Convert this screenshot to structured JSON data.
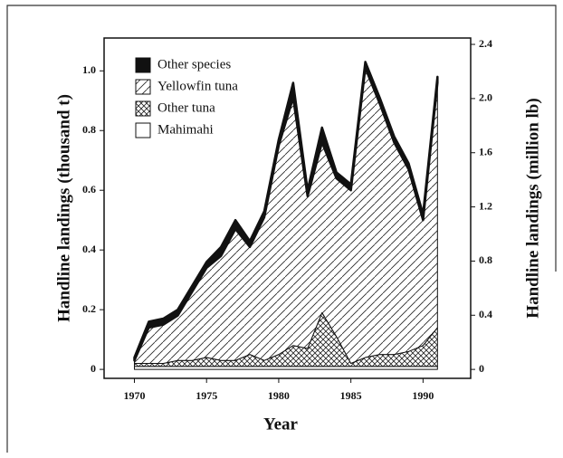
{
  "chart_data": {
    "type": "stacked_area",
    "x": [
      1970,
      1971,
      1972,
      1973,
      1974,
      1975,
      1976,
      1977,
      1978,
      1979,
      1980,
      1981,
      1982,
      1983,
      1984,
      1985,
      1986,
      1987,
      1988,
      1989,
      1990,
      1991
    ],
    "series": [
      {
        "name": "Mahimahi",
        "color": "#ffffff",
        "pattern": "none",
        "values": [
          0.01,
          0.01,
          0.01,
          0.01,
          0.01,
          0.01,
          0.01,
          0.01,
          0.01,
          0.01,
          0.01,
          0.01,
          0.01,
          0.01,
          0.01,
          0.01,
          0.01,
          0.01,
          0.01,
          0.01,
          0.01,
          0.01
        ]
      },
      {
        "name": "Other tuna",
        "color": "#111111",
        "pattern": "crosshatch",
        "values": [
          0.01,
          0.01,
          0.01,
          0.02,
          0.02,
          0.03,
          0.02,
          0.02,
          0.04,
          0.02,
          0.04,
          0.07,
          0.06,
          0.18,
          0.1,
          0.01,
          0.03,
          0.04,
          0.04,
          0.05,
          0.07,
          0.13
        ]
      },
      {
        "name": "Yellowfin tuna",
        "color": "#111111",
        "pattern": "hatch",
        "values": [
          0.01,
          0.12,
          0.13,
          0.15,
          0.23,
          0.3,
          0.35,
          0.44,
          0.36,
          0.48,
          0.7,
          0.83,
          0.51,
          0.57,
          0.53,
          0.58,
          0.97,
          0.84,
          0.71,
          0.61,
          0.42,
          0.82
        ]
      },
      {
        "name": "Other species",
        "color": "#111111",
        "pattern": "solid",
        "values": [
          0.01,
          0.02,
          0.02,
          0.02,
          0.02,
          0.02,
          0.03,
          0.03,
          0.02,
          0.02,
          0.02,
          0.05,
          0.02,
          0.05,
          0.02,
          0.02,
          0.02,
          0.02,
          0.02,
          0.02,
          0.02,
          0.02
        ]
      }
    ],
    "xlabel": "Year",
    "ylabel": "Handline landings (thousand t)",
    "y2label": "Handline landings (million lb)",
    "xlim": [
      1967.9,
      1993.3
    ],
    "xticks": [
      1970,
      1975,
      1980,
      1985,
      1990
    ],
    "ylim": [
      -0.03,
      1.11
    ],
    "yticks": [
      0,
      0.2,
      0.4,
      0.6,
      0.8,
      {
        "value": 1.0,
        "label": "1.0"
      }
    ],
    "y2lim": [
      -0.066,
      2.447
    ],
    "y2ticks": [
      0,
      0.4,
      0.8,
      1.2,
      1.6,
      {
        "value": 2.0,
        "label": "2.0"
      },
      2.4
    ],
    "legend": "upper left"
  }
}
